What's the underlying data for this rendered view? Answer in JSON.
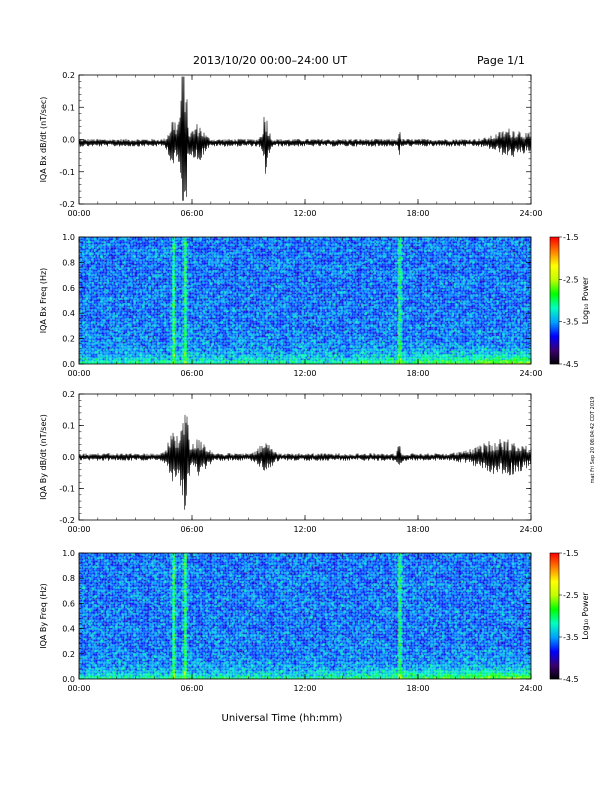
{
  "header": {
    "title": "2013/10/20  00:00–24:00 UT",
    "page": "Page 1/1"
  },
  "footer": {
    "xlabel": "Universal Time (hh:mm)",
    "side_note": "mat Fri Sep 20 08:04:42 CDT 2019"
  },
  "colorbar": {
    "label": "Log₁₀ Power",
    "ticks": [
      "-1.5",
      "-2.5",
      "-3.5",
      "-4.5"
    ],
    "range": [
      -4.5,
      -1.5
    ],
    "colors": [
      "#000000",
      "#3a0070",
      "#0000ff",
      "#00a0ff",
      "#00ffc0",
      "#00ff00",
      "#c0ff00",
      "#ffff00",
      "#ff8000",
      "#ff0000"
    ]
  },
  "chart_data": [
    {
      "type": "line",
      "ylabel": "IQA Bx dB/dt (nT/sec)",
      "ylim": [
        -0.2,
        0.2
      ],
      "yticks": [
        "0.2",
        "0.1",
        "0.0",
        "-0.1",
        "-0.2"
      ],
      "xlim": [
        "00:00",
        "24:00"
      ],
      "xticks": [
        "00:00",
        "06:00",
        "12:00",
        "18:00",
        "24:00"
      ],
      "baseline": -0.01,
      "bursts": [
        {
          "t": 5.0,
          "amp": 0.07,
          "w": 0.25
        },
        {
          "t": 5.5,
          "amp": 0.15,
          "w": 0.2
        },
        {
          "t": 5.6,
          "amp": 0.18,
          "w": 0.15
        },
        {
          "t": 6.3,
          "amp": 0.05,
          "w": 0.4
        },
        {
          "t": 9.9,
          "amp": 0.09,
          "w": 0.2
        },
        {
          "t": 17.0,
          "amp": 0.05,
          "w": 0.05
        },
        {
          "t": 23.0,
          "amp": 0.035,
          "w": 1.0
        }
      ],
      "noise": 0.012
    },
    {
      "type": "heatmap",
      "ylabel": "IQA Bx Freq (Hz)",
      "ylim": [
        0.0,
        1.0
      ],
      "yticks": [
        "1.0",
        "0.8",
        "0.6",
        "0.4",
        "0.2",
        "0.0"
      ],
      "xlim": [
        "00:00",
        "24:00"
      ],
      "xticks": [
        "00:00",
        "06:00",
        "12:00",
        "18:00",
        "24:00"
      ],
      "value_range": [
        -4.5,
        -1.5
      ],
      "background_level": -3.6,
      "low_freq_level": -2.6,
      "events_hours": [
        5.0,
        5.6,
        17.0
      ]
    },
    {
      "type": "line",
      "ylabel": "IQA By dB/dt (nT/sec)",
      "ylim": [
        -0.2,
        0.2
      ],
      "yticks": [
        "0.2",
        "0.1",
        "0.0",
        "-0.1",
        "-0.2"
      ],
      "xlim": [
        "00:00",
        "24:00"
      ],
      "xticks": [
        "00:00",
        "06:00",
        "12:00",
        "18:00",
        "24:00"
      ],
      "baseline": 0.0,
      "bursts": [
        {
          "t": 5.0,
          "amp": 0.08,
          "w": 0.3
        },
        {
          "t": 5.6,
          "amp": 0.2,
          "w": 0.2
        },
        {
          "t": 6.4,
          "amp": 0.05,
          "w": 0.5
        },
        {
          "t": 9.9,
          "amp": 0.04,
          "w": 0.4
        },
        {
          "t": 17.0,
          "amp": 0.04,
          "w": 0.1
        },
        {
          "t": 22.5,
          "amp": 0.05,
          "w": 1.5
        }
      ],
      "noise": 0.012
    },
    {
      "type": "heatmap",
      "ylabel": "IQA By Freq (Hz)",
      "ylim": [
        0.0,
        1.0
      ],
      "yticks": [
        "1.0",
        "0.8",
        "0.6",
        "0.4",
        "0.2",
        "0.0"
      ],
      "xlim": [
        "00:00",
        "24:00"
      ],
      "xticks": [
        "00:00",
        "06:00",
        "12:00",
        "18:00",
        "24:00"
      ],
      "value_range": [
        -4.5,
        -1.5
      ],
      "background_level": -3.6,
      "low_freq_level": -2.6,
      "events_hours": [
        5.0,
        5.6,
        17.0
      ]
    }
  ]
}
